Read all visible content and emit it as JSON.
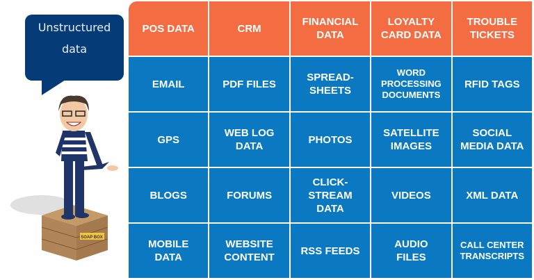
{
  "bubble": {
    "text": "Unstructured\ndata"
  },
  "crate_label": "SOAP BOX",
  "colors": {
    "header": "#f36c42",
    "cell": "#0b79c2",
    "bubble": "#053c78"
  },
  "grid": {
    "headers": [
      "POS DATA",
      "CRM",
      "FINANCIAL\nDATA",
      "LOYALTY\nCARD DATA",
      "TROUBLE\nTICKETS"
    ],
    "rows": [
      [
        "EMAIL",
        "PDF FILES",
        "SPREAD-\nSHEETS",
        "WORD\nPROCESSING\nDOCUMENTS",
        "RFID TAGS"
      ],
      [
        "GPS",
        "WEB LOG\nDATA",
        "PHOTOS",
        "SATELLITE\nIMAGES",
        "SOCIAL\nMEDIA DATA"
      ],
      [
        "BLOGS",
        "FORUMS",
        "CLICK-\nSTREAM\nDATA",
        "VIDEOS",
        "XML DATA"
      ],
      [
        "MOBILE\nDATA",
        "WEBSITE\nCONTENT",
        "RSS FEEDS",
        "AUDIO\nFILES",
        "CALL CENTER\nTRANSCRIPTS"
      ]
    ]
  }
}
